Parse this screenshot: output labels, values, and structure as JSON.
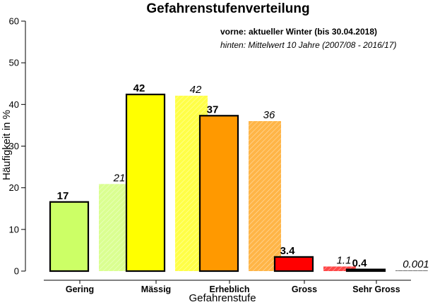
{
  "chart_data": {
    "type": "bar",
    "title": "Gefahrenstufenverteilung",
    "xlabel": "Gefahrenstufe",
    "ylabel": "Häufigkeit in %",
    "ylim": [
      0,
      60
    ],
    "yticks": [
      0,
      10,
      20,
      30,
      40,
      50,
      60
    ],
    "grid": false,
    "categories": [
      "Gering",
      "Mässig",
      "Erheblich",
      "Gross",
      "Sehr Gross"
    ],
    "colors": [
      "#ccff66",
      "#ffff00",
      "#ff9900",
      "#ff0000",
      "#000000"
    ],
    "series": [
      {
        "role": "front",
        "values": [
          16.6,
          42.4,
          37.3,
          3.4,
          0.4
        ],
        "labels": [
          "17",
          "42",
          "37",
          "3.4",
          "0.4"
        ]
      },
      {
        "role": "back",
        "values": [
          20.9,
          42.1,
          36.0,
          1.1,
          0.001
        ],
        "labels": [
          "21",
          "42",
          "36",
          "1.1",
          "0.001"
        ]
      }
    ],
    "legend_notes": {
      "front": "vorne: aktueller Winter (bis 30.04.2018)",
      "back": "hinten: Mittelwert 10 Jahre (2007/08 - 2016/17)"
    }
  }
}
